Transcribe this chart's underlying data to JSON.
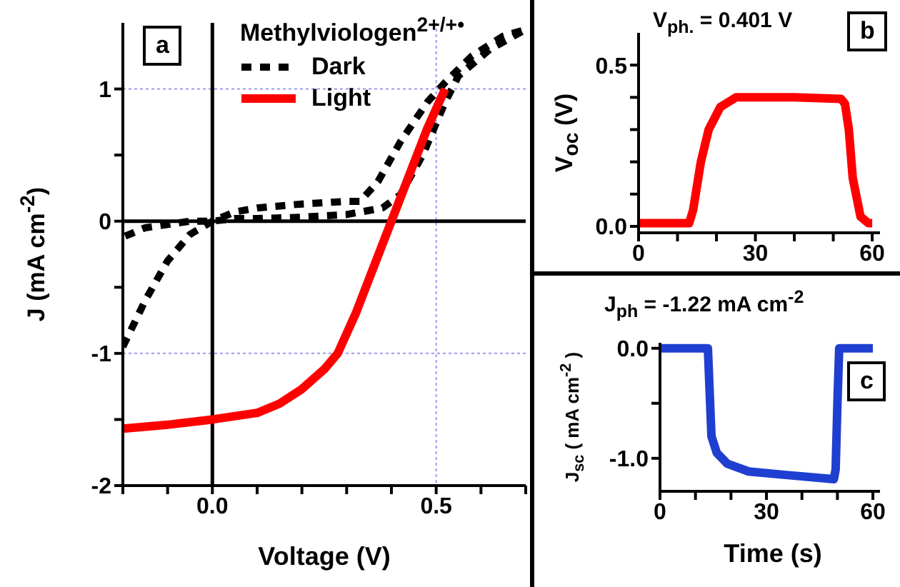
{
  "chart_data": [
    {
      "type": "line",
      "xlabel": "Voltage (V)",
      "ylabel": "J  (mA cm$^{-2}$)",
      "legend_title": "Methylviologen$^{2+/+•}$",
      "legend": "top right",
      "grid": true,
      "annotations": [
        "a"
      ],
      "xlim": [
        -0.2,
        0.7
      ],
      "ylim": [
        -2,
        1.5
      ],
      "xticks": [
        {
          "value": -0.2,
          "label": null
        },
        {
          "value": -0.1,
          "label": null
        },
        {
          "value": 0,
          "label": "0.0"
        },
        {
          "value": 0.1,
          "label": null
        },
        {
          "value": 0.2,
          "label": null
        },
        {
          "value": 0.3,
          "label": null
        },
        {
          "value": 0.4,
          "label": null
        },
        0.5,
        {
          "value": 0.6,
          "label": null
        },
        {
          "value": 0.7,
          "label": null
        }
      ],
      "yticks": [
        -2,
        {
          "value": -1.5,
          "label": null
        },
        -1,
        {
          "value": -0.5,
          "label": null
        },
        0,
        {
          "value": 0.5,
          "label": null
        },
        1
      ],
      "series": [
        {
          "color": "#000000",
          "line_style": "solid",
          "x": [
            0,
            0
          ],
          "values": [
            -2,
            1.5
          ]
        },
        {
          "color": "#000000",
          "line_style": "solid",
          "x": [
            -0.2,
            0.7
          ],
          "values": [
            0,
            0
          ]
        },
        {
          "name": "Dark",
          "color": "#000000",
          "line_style": "dashed",
          "x": [
            -0.2,
            -0.15,
            -0.1,
            -0.05,
            0,
            0.05,
            0.1,
            0.2,
            0.3,
            0.33,
            0.37,
            0.42,
            0.48,
            0.52,
            0.58,
            0.65,
            0.7,
            0.62,
            0.55,
            0.52,
            0.47,
            0.42,
            0.38,
            0.3,
            0.2,
            0.1,
            0.05,
            0,
            -0.05,
            -0.15,
            -0.2
          ],
          "values": [
            -0.95,
            -0.6,
            -0.3,
            -0.1,
            0,
            0.07,
            0.1,
            0.13,
            0.15,
            0.15,
            0.3,
            0.6,
            0.9,
            1.05,
            1.25,
            1.4,
            1.45,
            1.3,
            1.1,
            0.9,
            0.5,
            0.2,
            0.1,
            0.05,
            0.03,
            0.02,
            0.02,
            0,
            0,
            -0.05,
            -0.12
          ]
        },
        {
          "name": "Light",
          "color": "#ff0000",
          "line_style": "solid",
          "x": [
            -0.2,
            -0.1,
            0,
            0.1,
            0.15,
            0.2,
            0.25,
            0.28,
            0.32,
            0.36,
            0.4,
            0.44,
            0.48,
            0.52
          ],
          "values": [
            -1.57,
            -1.54,
            -1.5,
            -1.45,
            -1.38,
            -1.27,
            -1.12,
            -1,
            -0.7,
            -0.35,
            0,
            0.35,
            0.7,
            1
          ]
        }
      ]
    },
    {
      "type": "line",
      "ylabel": "V$_{oc}$ (V)",
      "annotations": [
        "V$_{ph.}$ = 0.401 V",
        "b"
      ],
      "xlim": [
        0,
        62
      ],
      "ylim": [
        -0.02,
        0.6
      ],
      "xticks": [
        0,
        {
          "value": 10,
          "label": null
        },
        {
          "value": 20,
          "label": null
        },
        30,
        {
          "value": 40,
          "label": null
        },
        {
          "value": 50,
          "label": null
        },
        60
      ],
      "yticks": [
        {
          "value": 0,
          "label": "0.0"
        },
        {
          "value": 0.1,
          "label": null
        },
        {
          "value": 0.2,
          "label": null
        },
        {
          "value": 0.3,
          "label": null
        },
        {
          "value": 0.4,
          "label": null
        },
        0.5
      ],
      "series": [
        {
          "color": "#ff0000",
          "line_style": "solid",
          "x": [
            0,
            13,
            14,
            16,
            18,
            21,
            25,
            40,
            52,
            53,
            54,
            55,
            57,
            59,
            60
          ],
          "values": [
            0.01,
            0.01,
            0.05,
            0.2,
            0.3,
            0.37,
            0.4,
            0.4,
            0.395,
            0.38,
            0.3,
            0.15,
            0.03,
            0.01,
            0.01
          ]
        }
      ]
    },
    {
      "type": "line",
      "xlabel": "Time (s)",
      "ylabel": "J$_{sc}$ ( mA cm$^{-2}$ )",
      "annotations": [
        "J$_{ph}$ =  -1.22 mA cm$^{-2}$",
        "c"
      ],
      "xlim": [
        0,
        62
      ],
      "ylim": [
        -1.3,
        0.05
      ],
      "xticks": [
        0,
        {
          "value": 10,
          "label": null
        },
        {
          "value": 20,
          "label": null
        },
        30,
        {
          "value": 40,
          "label": null
        },
        {
          "value": 50,
          "label": null
        },
        60
      ],
      "yticks": [
        {
          "value": -1,
          "label": "-1.0"
        },
        {
          "value": -0.5,
          "label": null
        },
        {
          "value": 0,
          "label": "0.0"
        }
      ],
      "series": [
        {
          "color": "#1f3fd0",
          "line_style": "solid",
          "x": [
            0,
            13.5,
            14,
            14.5,
            16,
            19,
            25,
            35,
            49,
            49.5,
            50,
            50.5,
            60
          ],
          "values": [
            0,
            0,
            -0.4,
            -0.8,
            -0.95,
            -1.05,
            -1.12,
            -1.15,
            -1.19,
            -1.1,
            -0.5,
            0,
            0
          ]
        }
      ]
    }
  ]
}
